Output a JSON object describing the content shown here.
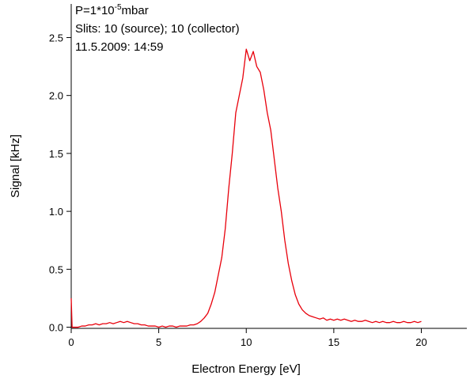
{
  "chart_data": {
    "type": "line",
    "annotations": {
      "pressure": "P=1*10",
      "pressure_exponent": "-5",
      "pressure_unit": "mbar",
      "lines": [
        "Slits: 10 (source); 10 (collector)",
        "11.5.2009: 14:59"
      ]
    },
    "x_label": "Electron Energy [eV]",
    "y_label": "Signal [kHz]",
    "xlim": [
      0,
      22.6
    ],
    "ylim": [
      -0.01,
      2.79
    ],
    "xticks": [
      0,
      5,
      10,
      15,
      20
    ],
    "yticks": [
      {
        "value": 0,
        "label": "0.0"
      },
      0.5,
      {
        "value": 1,
        "label": "1.0"
      },
      1.5,
      {
        "value": 2,
        "label": "2.0"
      },
      2.5
    ],
    "grid": false,
    "series": [
      {
        "color": "#e8000b",
        "x": [
          0,
          0.05,
          0.2,
          0.4,
          0.6,
          0.8,
          1,
          1.2,
          1.4,
          1.6,
          1.8,
          2,
          2.2,
          2.4,
          2.6,
          2.8,
          3,
          3.2,
          3.4,
          3.6,
          3.8,
          4,
          4.2,
          4.4,
          4.6,
          4.8,
          5,
          5.2,
          5.4,
          5.6,
          5.8,
          6,
          6.2,
          6.4,
          6.6,
          6.8,
          7,
          7.2,
          7.4,
          7.6,
          7.8,
          8,
          8.2,
          8.4,
          8.6,
          8.8,
          9,
          9.2,
          9.4,
          9.6,
          9.8,
          10,
          10.2,
          10.4,
          10.6,
          10.8,
          11,
          11.2,
          11.4,
          11.6,
          11.8,
          12,
          12.2,
          12.4,
          12.6,
          12.8,
          13,
          13.2,
          13.4,
          13.6,
          13.8,
          14,
          14.2,
          14.4,
          14.6,
          14.8,
          15,
          15.2,
          15.4,
          15.6,
          15.8,
          16,
          16.2,
          16.4,
          16.6,
          16.8,
          17,
          17.2,
          17.4,
          17.6,
          17.8,
          18,
          18.2,
          18.4,
          18.6,
          18.8,
          19,
          19.2,
          19.4,
          19.6,
          19.8,
          20
        ],
        "values": [
          0.25,
          0,
          0,
          0,
          0.01,
          0.01,
          0.02,
          0.02,
          0.03,
          0.02,
          0.03,
          0.03,
          0.04,
          0.03,
          0.04,
          0.05,
          0.04,
          0.05,
          0.04,
          0.03,
          0.03,
          0.02,
          0.02,
          0.01,
          0.01,
          0.01,
          0,
          0.01,
          0,
          0.01,
          0.01,
          0,
          0.01,
          0.01,
          0.01,
          0.02,
          0.02,
          0.03,
          0.05,
          0.08,
          0.12,
          0.2,
          0.3,
          0.45,
          0.6,
          0.85,
          1.2,
          1.5,
          1.85,
          2.0,
          2.15,
          2.4,
          2.3,
          2.38,
          2.25,
          2.2,
          2.05,
          1.85,
          1.7,
          1.45,
          1.2,
          1.0,
          0.75,
          0.55,
          0.4,
          0.28,
          0.2,
          0.15,
          0.12,
          0.1,
          0.09,
          0.08,
          0.07,
          0.08,
          0.06,
          0.07,
          0.06,
          0.07,
          0.06,
          0.07,
          0.06,
          0.05,
          0.06,
          0.05,
          0.05,
          0.06,
          0.05,
          0.04,
          0.05,
          0.04,
          0.05,
          0.04,
          0.04,
          0.05,
          0.04,
          0.04,
          0.05,
          0.04,
          0.04,
          0.05,
          0.04,
          0.05
        ]
      }
    ]
  }
}
